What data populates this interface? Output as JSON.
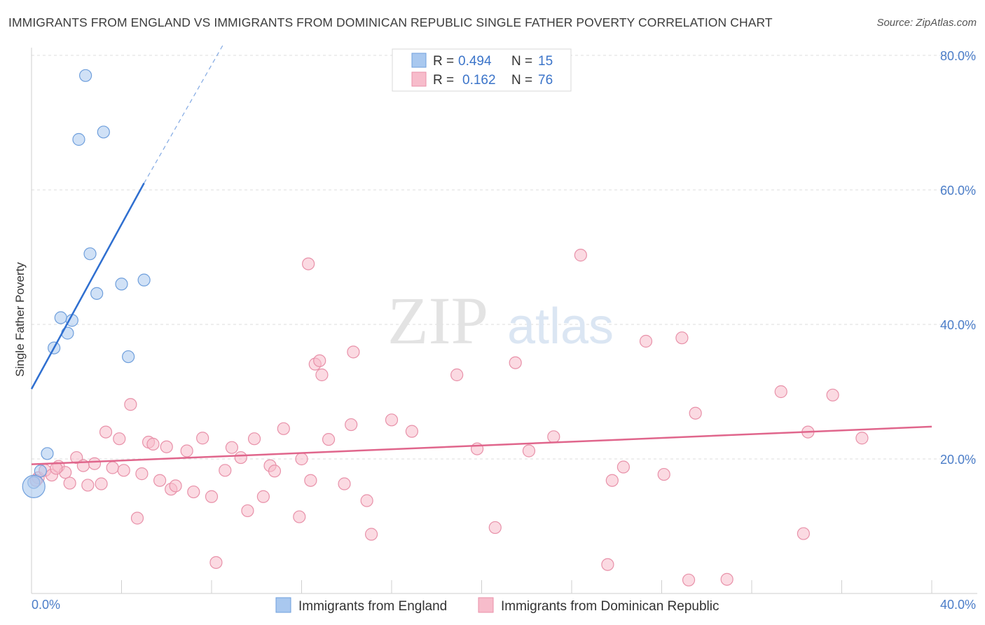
{
  "title": "IMMIGRANTS FROM ENGLAND VS IMMIGRANTS FROM DOMINICAN REPUBLIC SINGLE FATHER POVERTY CORRELATION CHART",
  "source": "Source: ZipAtlas.com",
  "watermark": {
    "zip": "ZIP",
    "atlas": "atlas"
  },
  "legend": {
    "rows": [
      {
        "r_label": "R = ",
        "r_value": "0.494",
        "n_label": "N = ",
        "n_value": "15",
        "color": "#a9c8ef",
        "stroke": "#6f9fdc"
      },
      {
        "r_label": "R = ",
        "r_value": "0.162",
        "n_label": "N = ",
        "n_value": "76",
        "color": "#f7bccb",
        "stroke": "#e891a9"
      }
    ]
  },
  "bottom_legend": [
    "Immigrants from England",
    "Immigrants from Dominican Republic"
  ],
  "chart_data": {
    "type": "scatter",
    "title": "IMMIGRANTS FROM ENGLAND VS IMMIGRANTS FROM DOMINICAN REPUBLIC SINGLE FATHER POVERTY CORRELATION CHART",
    "xlabel": "",
    "ylabel": "Single Father Poverty",
    "xlim": [
      0,
      40
    ],
    "ylim": [
      0,
      80
    ],
    "x_tick_labels": [
      "0.0%",
      "40.0%"
    ],
    "y_ticks": [
      20,
      40,
      60,
      80
    ],
    "y_tick_labels": [
      "20.0%",
      "40.0%",
      "60.0%",
      "80.0%"
    ],
    "series": [
      {
        "name": "Immigrants from England",
        "color": "#a9c8ef",
        "stroke": "#6f9fdc",
        "line_color": "#2f6fd0",
        "trend": {
          "x0": 0.0,
          "y0": 30.4,
          "x1": 5.0,
          "y1": 61.0,
          "dash_to_x": 8.5,
          "dash_to_y": 81.5
        },
        "points": [
          [
            0.1,
            16.5
          ],
          [
            0.4,
            18.2
          ],
          [
            0.7,
            20.8
          ],
          [
            1.0,
            36.5
          ],
          [
            1.3,
            41.0
          ],
          [
            1.6,
            38.7
          ],
          [
            1.8,
            40.6
          ],
          [
            2.1,
            67.5
          ],
          [
            2.4,
            77.0
          ],
          [
            2.6,
            50.5
          ],
          [
            2.9,
            44.6
          ],
          [
            3.2,
            68.6
          ],
          [
            4.0,
            46.0
          ],
          [
            4.3,
            35.2
          ],
          [
            5.0,
            46.6
          ]
        ]
      },
      {
        "name": "Immigrants from Dominican Republic",
        "color": "#f7bccb",
        "stroke": "#e891a9",
        "line_color": "#e0668c",
        "trend": {
          "x0": 0.0,
          "y0": 19.2,
          "x1": 40.0,
          "y1": 24.8
        },
        "points": [
          [
            0.3,
            17.2
          ],
          [
            0.6,
            18.3
          ],
          [
            0.9,
            17.6
          ],
          [
            1.2,
            18.9
          ],
          [
            1.5,
            18.0
          ],
          [
            1.7,
            16.4
          ],
          [
            2.0,
            20.2
          ],
          [
            2.3,
            19.0
          ],
          [
            2.5,
            16.1
          ],
          [
            2.8,
            19.3
          ],
          [
            3.1,
            16.3
          ],
          [
            3.3,
            24.0
          ],
          [
            3.6,
            18.7
          ],
          [
            3.9,
            23.0
          ],
          [
            4.1,
            18.3
          ],
          [
            4.4,
            28.1
          ],
          [
            4.7,
            11.2
          ],
          [
            4.9,
            17.8
          ],
          [
            5.2,
            22.5
          ],
          [
            5.4,
            22.2
          ],
          [
            5.7,
            16.8
          ],
          [
            6.0,
            21.8
          ],
          [
            6.2,
            15.5
          ],
          [
            6.4,
            16.0
          ],
          [
            6.9,
            21.2
          ],
          [
            7.2,
            15.1
          ],
          [
            7.6,
            23.1
          ],
          [
            8.0,
            14.4
          ],
          [
            8.2,
            4.6
          ],
          [
            8.6,
            18.3
          ],
          [
            8.9,
            21.7
          ],
          [
            9.3,
            20.2
          ],
          [
            9.6,
            12.3
          ],
          [
            9.9,
            23.0
          ],
          [
            10.3,
            14.4
          ],
          [
            10.6,
            19.0
          ],
          [
            10.8,
            18.2
          ],
          [
            11.2,
            24.5
          ],
          [
            11.9,
            11.4
          ],
          [
            12.0,
            20.0
          ],
          [
            12.3,
            49.0
          ],
          [
            12.4,
            16.8
          ],
          [
            12.6,
            34.1
          ],
          [
            12.8,
            34.6
          ],
          [
            12.9,
            32.5
          ],
          [
            13.2,
            22.9
          ],
          [
            13.9,
            16.3
          ],
          [
            14.2,
            25.1
          ],
          [
            14.3,
            35.9
          ],
          [
            14.9,
            13.8
          ],
          [
            15.1,
            8.8
          ],
          [
            16.0,
            25.8
          ],
          [
            16.9,
            24.1
          ],
          [
            18.9,
            32.5
          ],
          [
            19.8,
            21.5
          ],
          [
            20.6,
            9.8
          ],
          [
            21.5,
            34.3
          ],
          [
            22.1,
            21.2
          ],
          [
            23.2,
            23.3
          ],
          [
            24.4,
            50.3
          ],
          [
            25.6,
            4.3
          ],
          [
            25.8,
            16.8
          ],
          [
            26.3,
            18.8
          ],
          [
            27.3,
            37.5
          ],
          [
            28.1,
            17.7
          ],
          [
            28.9,
            38.0
          ],
          [
            29.5,
            26.8
          ],
          [
            29.2,
            2.0
          ],
          [
            30.9,
            2.1
          ],
          [
            33.3,
            30.0
          ],
          [
            34.3,
            8.9
          ],
          [
            34.5,
            24.0
          ],
          [
            35.6,
            29.5
          ],
          [
            36.9,
            23.1
          ],
          [
            0.2,
            16.8
          ],
          [
            1.1,
            18.6
          ]
        ]
      }
    ]
  }
}
